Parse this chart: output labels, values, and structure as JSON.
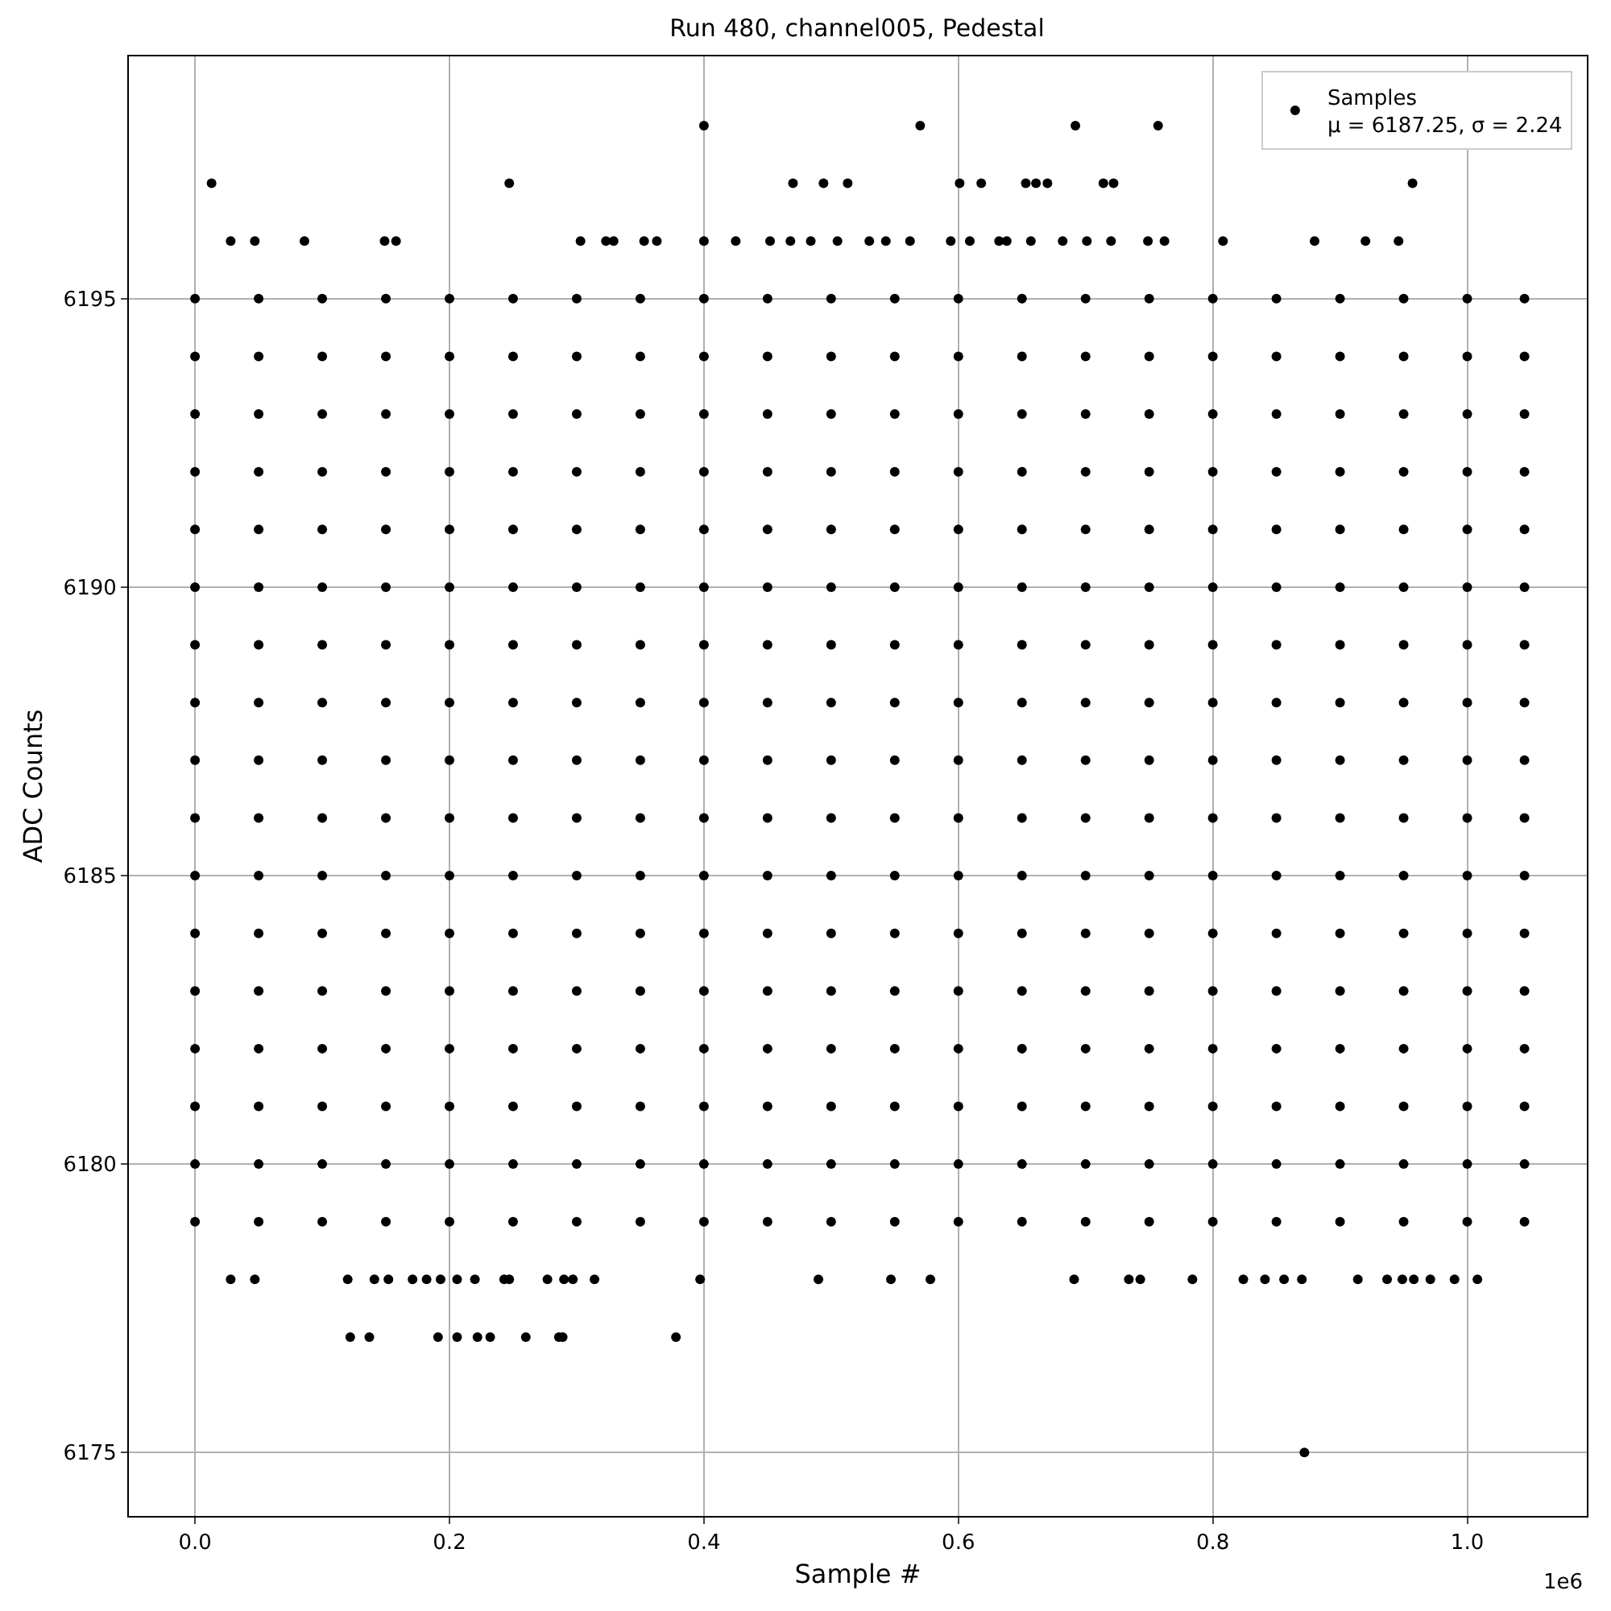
{
  "chart_data": {
    "type": "scatter",
    "title": "Run 480, channel005, Pedestal",
    "xlabel": "Sample #",
    "ylabel": "ADC Counts",
    "annotations": [
      "1e6"
    ],
    "x": [
      0,
      0.05,
      0.1,
      0.15,
      0.2,
      0.25,
      0.3,
      0.35,
      0.4,
      0.45,
      0.5,
      0.55,
      0.6,
      0.65,
      0.7,
      0.75,
      0.8,
      0.85,
      0.9,
      0.95,
      1.0,
      1.045
    ],
    "xlim": [
      -0.052,
      1.094
    ],
    "xticks": [
      {
        "value": 0,
        "label": "0.0"
      },
      {
        "value": 0.2,
        "label": "0.2"
      },
      {
        "value": 0.4,
        "label": "0.4"
      },
      {
        "value": 0.6,
        "label": "0.6"
      },
      {
        "value": 0.8,
        "label": "0.8"
      },
      {
        "value": 1.0,
        "label": "1.0"
      }
    ],
    "ylim": [
      6173.9,
      6199.2
    ],
    "yticks": [
      6175,
      6180,
      6185,
      6190,
      6195
    ],
    "grid": true,
    "legend": "top right",
    "marker": "circle",
    "series": [
      {
        "name": "Samples\nμ = 6187.25, σ = 2.24",
        "color": "#000000",
        "x": [
          0.4,
          0.57,
          0.692,
          0.757
        ],
        "values": [
          6198,
          6198,
          6198,
          6198
        ]
      },
      {
        "color": "#000000",
        "x": [
          0.013,
          0.247,
          0.47,
          0.494,
          0.513,
          0.601,
          0.618,
          0.653,
          0.661,
          0.67,
          0.714,
          0.722,
          0.957
        ],
        "values": [
          6197,
          6197,
          6197,
          6197,
          6197,
          6197,
          6197,
          6197,
          6197,
          6197,
          6197,
          6197,
          6197
        ]
      },
      {
        "color": "#000000",
        "x": [
          0.028,
          0.047,
          0.086,
          0.149,
          0.158,
          0.303,
          0.323,
          0.329,
          0.353,
          0.363,
          0.4,
          0.425,
          0.452,
          0.468,
          0.484,
          0.505,
          0.53,
          0.543,
          0.562,
          0.594,
          0.609,
          0.632,
          0.638,
          0.657,
          0.682,
          0.701,
          0.72,
          0.749,
          0.762,
          0.808,
          0.88,
          0.92,
          0.946
        ],
        "values": [
          6196,
          6196,
          6196,
          6196,
          6196,
          6196,
          6196,
          6196,
          6196,
          6196,
          6196,
          6196,
          6196,
          6196,
          6196,
          6196,
          6196,
          6196,
          6196,
          6196,
          6196,
          6196,
          6196,
          6196,
          6196,
          6196,
          6196,
          6196,
          6196,
          6196,
          6196,
          6196,
          6196
        ]
      },
      {
        "color": "#000000",
        "values": [
          6195,
          6195,
          6195,
          6195,
          6195,
          6195,
          6195,
          6195,
          6195,
          6195,
          6195,
          6195,
          6195,
          6195,
          6195,
          6195,
          6195,
          6195,
          6195,
          6195,
          6195,
          6195
        ]
      },
      {
        "color": "#000000",
        "values": [
          6194,
          6194,
          6194,
          6194,
          6194,
          6194,
          6194,
          6194,
          6194,
          6194,
          6194,
          6194,
          6194,
          6194,
          6194,
          6194,
          6194,
          6194,
          6194,
          6194,
          6194,
          6194
        ]
      },
      {
        "color": "#000000",
        "values": [
          6193,
          6193,
          6193,
          6193,
          6193,
          6193,
          6193,
          6193,
          6193,
          6193,
          6193,
          6193,
          6193,
          6193,
          6193,
          6193,
          6193,
          6193,
          6193,
          6193,
          6193,
          6193
        ]
      },
      {
        "color": "#000000",
        "values": [
          6192,
          6192,
          6192,
          6192,
          6192,
          6192,
          6192,
          6192,
          6192,
          6192,
          6192,
          6192,
          6192,
          6192,
          6192,
          6192,
          6192,
          6192,
          6192,
          6192,
          6192,
          6192
        ]
      },
      {
        "color": "#000000",
        "values": [
          6191,
          6191,
          6191,
          6191,
          6191,
          6191,
          6191,
          6191,
          6191,
          6191,
          6191,
          6191,
          6191,
          6191,
          6191,
          6191,
          6191,
          6191,
          6191,
          6191,
          6191,
          6191
        ]
      },
      {
        "color": "#000000",
        "values": [
          6190,
          6190,
          6190,
          6190,
          6190,
          6190,
          6190,
          6190,
          6190,
          6190,
          6190,
          6190,
          6190,
          6190,
          6190,
          6190,
          6190,
          6190,
          6190,
          6190,
          6190,
          6190
        ]
      },
      {
        "color": "#000000",
        "values": [
          6189,
          6189,
          6189,
          6189,
          6189,
          6189,
          6189,
          6189,
          6189,
          6189,
          6189,
          6189,
          6189,
          6189,
          6189,
          6189,
          6189,
          6189,
          6189,
          6189,
          6189,
          6189
        ]
      },
      {
        "color": "#000000",
        "values": [
          6188,
          6188,
          6188,
          6188,
          6188,
          6188,
          6188,
          6188,
          6188,
          6188,
          6188,
          6188,
          6188,
          6188,
          6188,
          6188,
          6188,
          6188,
          6188,
          6188,
          6188,
          6188
        ]
      },
      {
        "color": "#000000",
        "values": [
          6187,
          6187,
          6187,
          6187,
          6187,
          6187,
          6187,
          6187,
          6187,
          6187,
          6187,
          6187,
          6187,
          6187,
          6187,
          6187,
          6187,
          6187,
          6187,
          6187,
          6187,
          6187
        ]
      },
      {
        "color": "#000000",
        "values": [
          6186,
          6186,
          6186,
          6186,
          6186,
          6186,
          6186,
          6186,
          6186,
          6186,
          6186,
          6186,
          6186,
          6186,
          6186,
          6186,
          6186,
          6186,
          6186,
          6186,
          6186,
          6186
        ]
      },
      {
        "color": "#000000",
        "values": [
          6185,
          6185,
          6185,
          6185,
          6185,
          6185,
          6185,
          6185,
          6185,
          6185,
          6185,
          6185,
          6185,
          6185,
          6185,
          6185,
          6185,
          6185,
          6185,
          6185,
          6185,
          6185
        ]
      },
      {
        "color": "#000000",
        "values": [
          6184,
          6184,
          6184,
          6184,
          6184,
          6184,
          6184,
          6184,
          6184,
          6184,
          6184,
          6184,
          6184,
          6184,
          6184,
          6184,
          6184,
          6184,
          6184,
          6184,
          6184,
          6184
        ]
      },
      {
        "color": "#000000",
        "values": [
          6183,
          6183,
          6183,
          6183,
          6183,
          6183,
          6183,
          6183,
          6183,
          6183,
          6183,
          6183,
          6183,
          6183,
          6183,
          6183,
          6183,
          6183,
          6183,
          6183,
          6183,
          6183
        ]
      },
      {
        "color": "#000000",
        "values": [
          6182,
          6182,
          6182,
          6182,
          6182,
          6182,
          6182,
          6182,
          6182,
          6182,
          6182,
          6182,
          6182,
          6182,
          6182,
          6182,
          6182,
          6182,
          6182,
          6182,
          6182,
          6182
        ]
      },
      {
        "color": "#000000",
        "values": [
          6181,
          6181,
          6181,
          6181,
          6181,
          6181,
          6181,
          6181,
          6181,
          6181,
          6181,
          6181,
          6181,
          6181,
          6181,
          6181,
          6181,
          6181,
          6181,
          6181,
          6181,
          6181
        ]
      },
      {
        "color": "#000000",
        "values": [
          6180,
          6180,
          6180,
          6180,
          6180,
          6180,
          6180,
          6180,
          6180,
          6180,
          6180,
          6180,
          6180,
          6180,
          6180,
          6180,
          6180,
          6180,
          6180,
          6180,
          6180,
          6180
        ]
      },
      {
        "color": "#000000",
        "values": [
          6179,
          6179,
          6179,
          6179,
          6179,
          6179,
          6179,
          6179,
          6179,
          6179,
          6179,
          6179,
          6179,
          6179,
          6179,
          6179,
          6179,
          6179,
          6179,
          6179,
          6179,
          6179
        ]
      },
      {
        "color": "#000000",
        "x": [
          0.028,
          0.047,
          0.12,
          0.141,
          0.152,
          0.171,
          0.182,
          0.193,
          0.206,
          0.22,
          0.243,
          0.247,
          0.277,
          0.29,
          0.297,
          0.314,
          0.397,
          0.49,
          0.547,
          0.578,
          0.691,
          0.734,
          0.743,
          0.784,
          0.824,
          0.841,
          0.856,
          0.87,
          0.914,
          0.937,
          0.949,
          0.958,
          0.971,
          0.99,
          1.008
        ],
        "values": [
          6178,
          6178,
          6178,
          6178,
          6178,
          6178,
          6178,
          6178,
          6178,
          6178,
          6178,
          6178,
          6178,
          6178,
          6178,
          6178,
          6178,
          6178,
          6178,
          6178,
          6178,
          6178,
          6178,
          6178,
          6178,
          6178,
          6178,
          6178,
          6178,
          6178,
          6178,
          6178,
          6178,
          6178,
          6178
        ]
      },
      {
        "color": "#000000",
        "x": [
          0.122,
          0.137,
          0.191,
          0.206,
          0.222,
          0.232,
          0.26,
          0.286,
          0.289,
          0.378
        ],
        "values": [
          6177,
          6177,
          6177,
          6177,
          6177,
          6177,
          6177,
          6177,
          6177,
          6177
        ]
      },
      {
        "color": "#000000",
        "x": [
          0.872
        ],
        "values": [
          6175
        ]
      }
    ]
  }
}
